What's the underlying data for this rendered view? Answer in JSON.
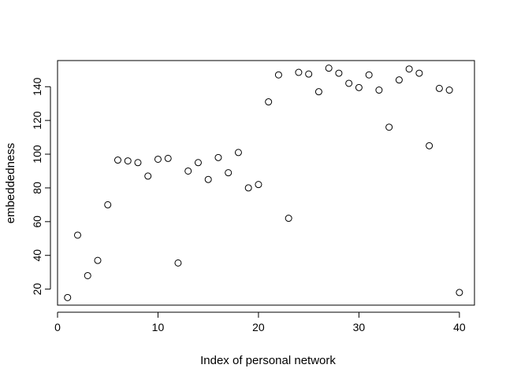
{
  "chart_data": {
    "type": "scatter",
    "title": "",
    "xlabel": "Index of personal network",
    "ylabel": "embeddedness",
    "xlim": [
      0.0,
      41.5
    ],
    "ylim": [
      10.5,
      155.5
    ],
    "x_ticks": [
      0,
      10,
      20,
      30,
      40
    ],
    "y_ticks": [
      20,
      40,
      60,
      80,
      100,
      120,
      140
    ],
    "x_tick_labels": [
      "0",
      "10",
      "20",
      "30",
      "40"
    ],
    "y_tick_labels": [
      "20",
      "40",
      "60",
      "80",
      "100",
      "120",
      "140"
    ],
    "grid": false,
    "legend": "none",
    "marker": "open-circle",
    "points": [
      {
        "x": 1,
        "y": 15
      },
      {
        "x": 2,
        "y": 52
      },
      {
        "x": 3,
        "y": 28
      },
      {
        "x": 4,
        "y": 37
      },
      {
        "x": 5,
        "y": 70
      },
      {
        "x": 6,
        "y": 96.5
      },
      {
        "x": 7,
        "y": 96
      },
      {
        "x": 8,
        "y": 95
      },
      {
        "x": 9,
        "y": 87
      },
      {
        "x": 10,
        "y": 97
      },
      {
        "x": 11,
        "y": 97.5
      },
      {
        "x": 12,
        "y": 35.5
      },
      {
        "x": 13,
        "y": 90
      },
      {
        "x": 14,
        "y": 95
      },
      {
        "x": 15,
        "y": 85
      },
      {
        "x": 16,
        "y": 98
      },
      {
        "x": 17,
        "y": 89
      },
      {
        "x": 18,
        "y": 101
      },
      {
        "x": 19,
        "y": 80
      },
      {
        "x": 20,
        "y": 82
      },
      {
        "x": 21,
        "y": 131
      },
      {
        "x": 22,
        "y": 147
      },
      {
        "x": 23,
        "y": 62
      },
      {
        "x": 24,
        "y": 148.5
      },
      {
        "x": 25,
        "y": 147.5
      },
      {
        "x": 26,
        "y": 137
      },
      {
        "x": 27,
        "y": 151
      },
      {
        "x": 28,
        "y": 148
      },
      {
        "x": 29,
        "y": 142
      },
      {
        "x": 30,
        "y": 139.5
      },
      {
        "x": 31,
        "y": 147
      },
      {
        "x": 32,
        "y": 138
      },
      {
        "x": 33,
        "y": 116
      },
      {
        "x": 34,
        "y": 144
      },
      {
        "x": 35,
        "y": 150.5
      },
      {
        "x": 36,
        "y": 148
      },
      {
        "x": 37,
        "y": 105
      },
      {
        "x": 38,
        "y": 139
      },
      {
        "x": 39,
        "y": 138
      },
      {
        "x": 40,
        "y": 18
      }
    ]
  }
}
